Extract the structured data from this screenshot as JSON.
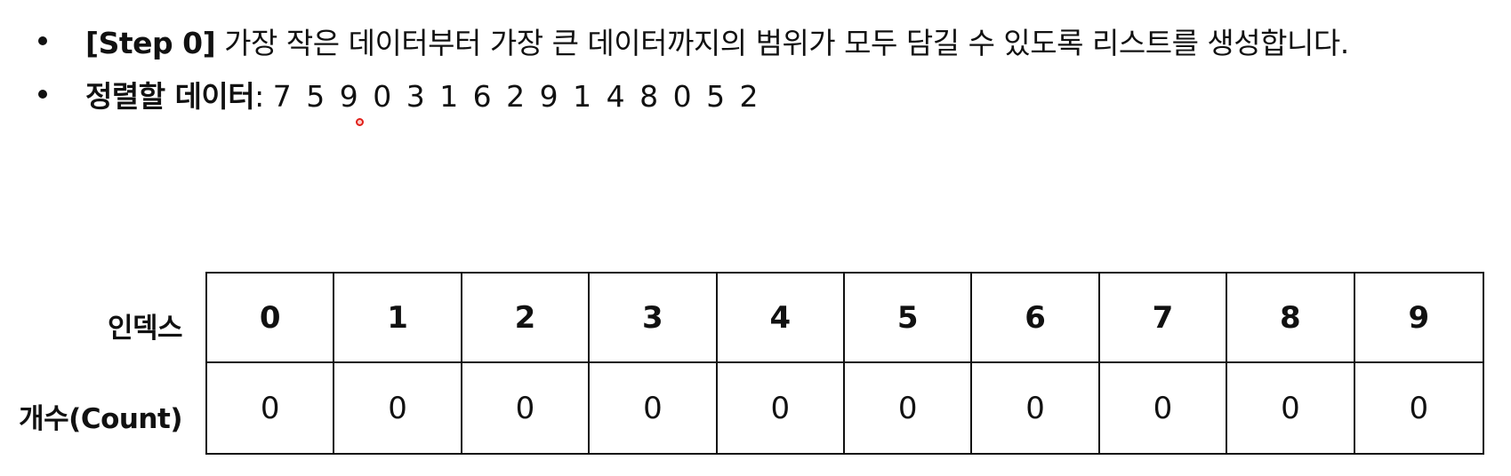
{
  "bullets": {
    "step": {
      "prefix": "[Step 0]",
      "text": " 가장 작은 데이터부터 가장 큰 데이터까지의 범위가 모두 담길 수 있도록 리스트를 생성합니다."
    },
    "data": {
      "label": "정렬할 데이터",
      "separator": ": ",
      "sequence": "7 5 9 0 3 1 6 2 9 1 4 8 0 5 2"
    }
  },
  "table": {
    "index_label": "인덱스",
    "count_label": "개수(Count)",
    "indices": [
      "0",
      "1",
      "2",
      "3",
      "4",
      "5",
      "6",
      "7",
      "8",
      "9"
    ],
    "counts": [
      "0",
      "0",
      "0",
      "0",
      "0",
      "0",
      "0",
      "0",
      "0",
      "0"
    ]
  },
  "colors": {
    "text": "#111111",
    "border": "#111111",
    "cursor": "#e0201a"
  }
}
